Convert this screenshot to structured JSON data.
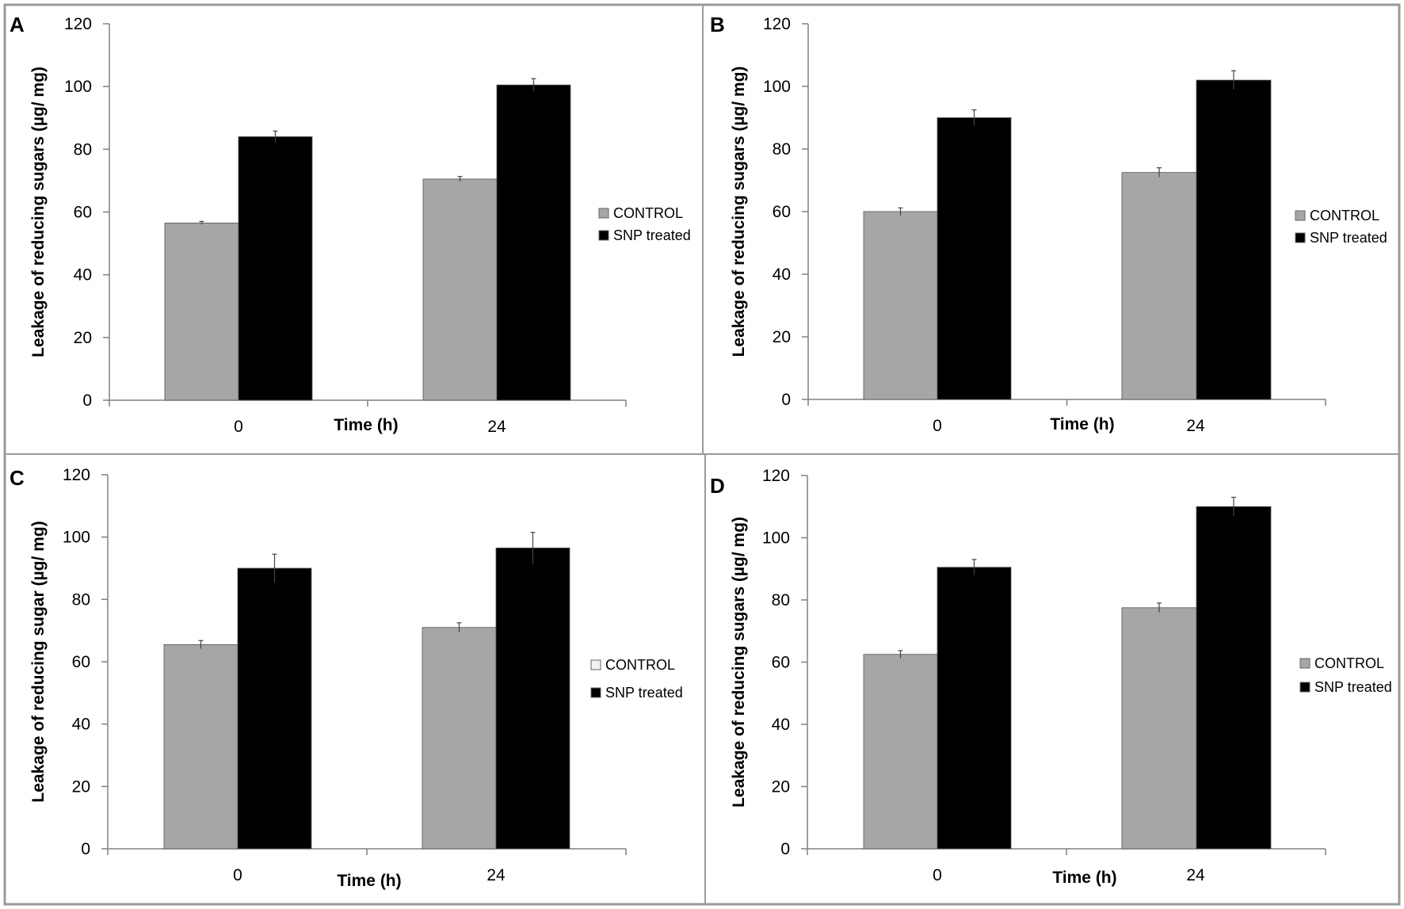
{
  "chart_data": [
    {
      "panel": "A",
      "type": "bar",
      "ylabel": "Leakage of reducing sugars (µg/ mg)",
      "xlabel": "Time (h)",
      "categories": [
        "0",
        "24"
      ],
      "ylim": [
        0,
        120
      ],
      "yticks": [
        "0",
        "20",
        "40",
        "60",
        "80",
        "100",
        "120"
      ],
      "legend_position": "right",
      "series": [
        {
          "name": "CONTROL",
          "color": "#a6a6a6",
          "values": [
            56.5,
            70.5
          ],
          "errors": [
            0.5,
            0.8
          ]
        },
        {
          "name": "SNP treated",
          "color": "#000000",
          "values": [
            84,
            100.5
          ],
          "errors": [
            1.8,
            2.0
          ]
        }
      ]
    },
    {
      "panel": "B",
      "type": "bar",
      "ylabel": "Leakage of reducing sugars (µg/ mg)",
      "xlabel": "Time (h)",
      "categories": [
        "0",
        "24"
      ],
      "ylim": [
        0,
        120
      ],
      "yticks": [
        "0",
        "20",
        "40",
        "60",
        "80",
        "100",
        "120"
      ],
      "legend_position": "right",
      "series": [
        {
          "name": "CONTROL",
          "color": "#a6a6a6",
          "values": [
            60,
            72.5
          ],
          "errors": [
            1.2,
            1.5
          ]
        },
        {
          "name": "SNP treated",
          "color": "#000000",
          "values": [
            90,
            102
          ],
          "errors": [
            2.5,
            3.0
          ]
        }
      ]
    },
    {
      "panel": "C",
      "type": "bar",
      "ylabel": "Leakage of reducing  sugar (µg/ mg)",
      "xlabel": "Time (h)",
      "categories": [
        "0",
        "24"
      ],
      "ylim": [
        0,
        120
      ],
      "yticks": [
        "0",
        "20",
        "40",
        "60",
        "80",
        "100",
        "120"
      ],
      "legend_position": "right",
      "legend_control_swatch": "#f2f2f2",
      "series": [
        {
          "name": "CONTROL",
          "color": "#a6a6a6",
          "values": [
            65.5,
            71
          ],
          "errors": [
            1.3,
            1.5
          ]
        },
        {
          "name": "SNP treated",
          "color": "#000000",
          "values": [
            90,
            96.5
          ],
          "errors": [
            4.5,
            5.0
          ]
        }
      ]
    },
    {
      "panel": "D",
      "type": "bar",
      "ylabel": "Leakage  of reducing sugars (µg/ mg)",
      "xlabel": "Time (h)",
      "categories": [
        "0",
        "24"
      ],
      "ylim": [
        0,
        120
      ],
      "yticks": [
        "0",
        "20",
        "40",
        "60",
        "80",
        "100",
        "120"
      ],
      "legend_position": "right",
      "series": [
        {
          "name": "CONTROL",
          "color": "#a6a6a6",
          "values": [
            62.5,
            77.5
          ],
          "errors": [
            1.2,
            1.5
          ]
        },
        {
          "name": "SNP treated",
          "color": "#000000",
          "values": [
            90.5,
            110
          ],
          "errors": [
            2.5,
            3.0
          ]
        }
      ]
    }
  ]
}
